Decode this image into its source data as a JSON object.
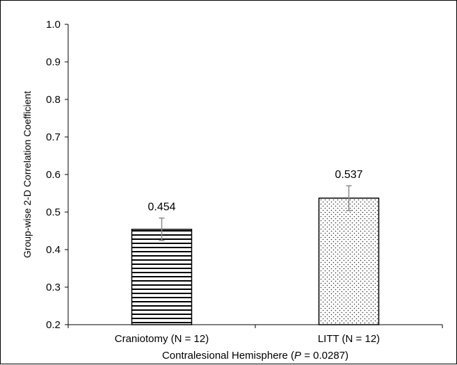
{
  "chart_data": {
    "type": "bar",
    "categories": [
      "Craniotomy (N = 12)",
      "LITT (N = 12)"
    ],
    "values": [
      0.454,
      0.537
    ],
    "value_labels": [
      "0.454",
      "0.537"
    ],
    "error_bars": [
      0.03,
      0.033
    ],
    "bar_patterns": [
      "horizontal-lines",
      "dots"
    ],
    "ylabel": "Group-wise 2-D Correlation Coefficient",
    "xlabel_prefix": "Contralesional  Hemisphere (",
    "xlabel_p": "P",
    "xlabel_suffix": " = 0.0287)",
    "ylim": [
      0.2,
      1.0
    ],
    "yticks": [
      "0.2",
      "0.3",
      "0.4",
      "0.5",
      "0.6",
      "0.7",
      "0.8",
      "0.9",
      "1.0"
    ],
    "grid": false,
    "legend": "none"
  }
}
